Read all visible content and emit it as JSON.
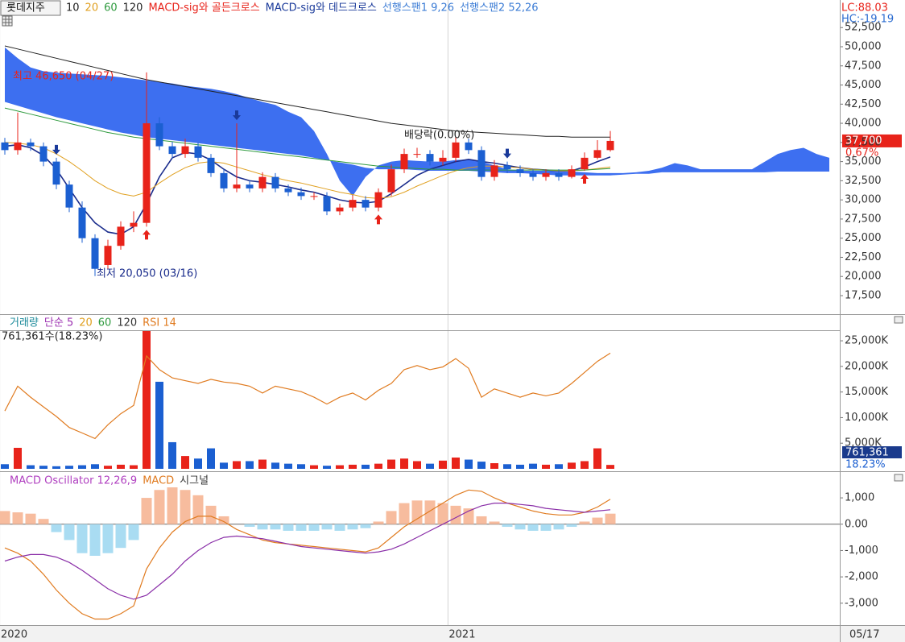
{
  "chart_data": [
    {
      "type": "candlestick",
      "title": "롯데지주",
      "open": [
        37500,
        36500,
        37500,
        37000,
        35000,
        32000,
        29000,
        25000,
        21500,
        24000,
        26500,
        27000,
        40000,
        37000,
        36000,
        37000,
        35500,
        33500,
        31500,
        32000,
        31500,
        33000,
        31500,
        31000,
        30500,
        30500,
        28500,
        29000,
        30000,
        29000,
        31000,
        34000,
        36000,
        36000,
        35000,
        35500,
        37500,
        36500,
        33000,
        34500,
        34000,
        33500,
        33000,
        33500,
        33000,
        34000,
        35500,
        36500
      ],
      "high": [
        38100,
        41400,
        38000,
        37500,
        35500,
        32500,
        29800,
        25500,
        24800,
        27200,
        28500,
        46650,
        40800,
        37600,
        38000,
        37500,
        36000,
        34000,
        40000,
        32500,
        33600,
        33500,
        32000,
        31600,
        31000,
        31000,
        29500,
        30600,
        30500,
        31500,
        34600,
        36700,
        36800,
        36500,
        36500,
        38200,
        38000,
        37000,
        35200,
        35000,
        34500,
        34000,
        34000,
        34000,
        34500,
        36200,
        37800,
        39000
      ],
      "low": [
        35900,
        35900,
        36400,
        34400,
        31400,
        28400,
        24400,
        20050,
        21000,
        23500,
        25800,
        26500,
        36500,
        35400,
        35500,
        35000,
        33000,
        31000,
        31000,
        31000,
        31000,
        31000,
        30500,
        30000,
        30000,
        28000,
        28000,
        28500,
        28500,
        28500,
        30500,
        33500,
        35500,
        34500,
        34500,
        35000,
        36000,
        32500,
        32500,
        33500,
        33000,
        32500,
        32500,
        32500,
        32800,
        33800,
        35300,
        36300
      ],
      "close": [
        36500,
        37500,
        37000,
        35000,
        32000,
        29000,
        25000,
        21000,
        24000,
        26500,
        27000,
        40000,
        37000,
        36000,
        37000,
        35500,
        33500,
        31500,
        32000,
        31500,
        33000,
        31500,
        31000,
        30500,
        30500,
        28500,
        29000,
        30000,
        29000,
        31000,
        34000,
        36000,
        36000,
        35000,
        35500,
        37500,
        36500,
        33000,
        34500,
        34000,
        33500,
        33000,
        33500,
        33000,
        34000,
        35500,
        36500,
        37700
      ],
      "up_color": "#e8231a",
      "down_color": "#1b5fd1",
      "lines": [
        {
          "name": "10",
          "color": "#1a2c8c",
          "values": [
            37000,
            37200,
            36800,
            35800,
            34000,
            31500,
            29000,
            27000,
            25800,
            25500,
            26500,
            29500,
            33000,
            35500,
            36200,
            36000,
            35200,
            34000,
            33000,
            32500,
            32300,
            32000,
            31700,
            31300,
            31000,
            30500,
            30000,
            29700,
            29600,
            29800,
            30800,
            32000,
            33200,
            34000,
            34500,
            35000,
            35300,
            35000,
            34800,
            34500,
            34200,
            34000,
            33900,
            33800,
            33800,
            34300,
            35000,
            35600
          ]
        },
        {
          "name": "20",
          "color": "#e0a020",
          "values": [
            37500,
            37400,
            37200,
            36800,
            36000,
            35000,
            33800,
            32500,
            31500,
            30800,
            30500,
            31000,
            32200,
            33300,
            34200,
            34800,
            35000,
            34800,
            34300,
            33800,
            33300,
            32900,
            32500,
            32200,
            31800,
            31400,
            31000,
            30700,
            30300,
            30200,
            30400,
            31000,
            31800,
            32500,
            33200,
            33800,
            34200,
            34400,
            34400,
            34300,
            34200,
            34000,
            33900,
            33800,
            33800,
            33900,
            34100,
            34300
          ]
        },
        {
          "name": "60",
          "color": "#2e9a3e",
          "values": [
            42000,
            41600,
            41200,
            40800,
            40400,
            40000,
            39600,
            39200,
            38800,
            38500,
            38200,
            38000,
            37800,
            37600,
            37400,
            37200,
            37000,
            36800,
            36600,
            36400,
            36200,
            36000,
            35800,
            35600,
            35400,
            35200,
            35000,
            34800,
            34600,
            34400,
            34300,
            34200,
            34100,
            34000,
            34000,
            33900,
            33900,
            33900,
            33900,
            33900,
            33900,
            33900,
            33900,
            33900,
            33900,
            33900,
            34000,
            34100
          ]
        },
        {
          "name": "120",
          "color": "#222222",
          "values": [
            50100,
            49700,
            49300,
            48900,
            48500,
            48100,
            47700,
            47300,
            46900,
            46500,
            46100,
            45700,
            45400,
            45100,
            44800,
            44500,
            44200,
            43900,
            43600,
            43300,
            43000,
            42700,
            42400,
            42100,
            41800,
            41500,
            41200,
            40900,
            40600,
            40300,
            40000,
            39800,
            39600,
            39400,
            39200,
            39000,
            38900,
            38800,
            38700,
            38600,
            38500,
            38400,
            38300,
            38300,
            38200,
            38200,
            38200,
            38200
          ]
        }
      ],
      "signals": [
        {
          "name": "MACD-sig와 골든크로스",
          "color": "#e8231a",
          "direction": "up",
          "at": [
            11,
            29,
            45
          ]
        },
        {
          "name": "MACD-sig와 데드크로스",
          "color": "#1a3a9a",
          "direction": "down",
          "at": [
            4,
            18,
            39
          ]
        }
      ],
      "cloud": {
        "color": "#3d6ff0",
        "spans": [
          {
            "name": "선행스팬1 9,26",
            "color": "#3a7bd5",
            "values": [
              49900,
              48500,
              47300,
              46800,
              46600,
              46500,
              46400,
              46300,
              46200,
              46000,
              45800,
              45600,
              45400,
              45200,
              44900,
              44700,
              44500,
              44200,
              43800,
              43300,
              42800,
              42400,
              41500,
              40800,
              39000,
              36000,
              32500,
              30500,
              33000,
              34500,
              35000,
              35200,
              35100,
              35000,
              35000,
              35200,
              35300,
              35000,
              34500,
              34000,
              33800,
              33800,
              33800,
              33800,
              33700,
              33600,
              33500,
              33500,
              33500,
              33600,
              33800,
              34200,
              34800,
              34500,
              34000,
              34000,
              34000,
              34000,
              34000,
              35000,
              36000,
              36500,
              36800,
              36000,
              35500
            ]
          },
          {
            "name": "선행스팬2 52,26",
            "color": "#3a7bd5",
            "values": [
              42800,
              42300,
              41800,
              41300,
              40800,
              40400,
              40000,
              39600,
              39200,
              38800,
              38500,
              38200,
              38000,
              37800,
              37600,
              37400,
              37200,
              37000,
              36800,
              36600,
              36400,
              36200,
              36000,
              35800,
              35500,
              35200,
              34900,
              34600,
              34200,
              34000,
              34000,
              34000,
              33900,
              33800,
              33800,
              33800,
              33800,
              33700,
              33600,
              33500,
              33500,
              33400,
              33300,
              33200,
              33200,
              33200,
              33200,
              33200,
              33300,
              33400,
              33400,
              33600,
              33600,
              33600,
              33600,
              33600,
              33600,
              33600,
              33600,
              33600,
              33700,
              33700,
              33700,
              33700,
              33700
            ]
          }
        ]
      },
      "annotations": [
        {
          "text": "최고 46,650 (04/27)",
          "color": "#e8231a"
        },
        {
          "text": "최저 20,050 (03/16)",
          "color": "#1a2c8c"
        },
        {
          "text": "배당락(0.00%)",
          "color": "#222222"
        }
      ],
      "current": {
        "value": 37700,
        "label": "37,700"
      },
      "change": "0.67%",
      "lc": "LC:88.03",
      "hc": "HC:-19.19",
      "ylim": [
        15080,
        56100
      ],
      "yticks": [
        {
          "value": 17500,
          "label": "17,500"
        },
        {
          "value": 20000,
          "label": "20,000"
        },
        {
          "value": 22500,
          "label": "22,500"
        },
        {
          "value": 25000,
          "label": "25,000"
        },
        {
          "value": 27500,
          "label": "27,500"
        },
        {
          "value": 30000,
          "label": "30,000"
        },
        {
          "value": 32500,
          "label": "32,500"
        },
        {
          "value": 35000,
          "label": "35,000"
        },
        {
          "value": 37500,
          "label": "37,500"
        },
        {
          "value": 40000,
          "label": "40,000"
        },
        {
          "value": 42500,
          "label": "42,500"
        },
        {
          "value": 45000,
          "label": "45,000"
        },
        {
          "value": 47500,
          "label": "47,500"
        },
        {
          "value": 50000,
          "label": "50,000"
        },
        {
          "value": 52500,
          "label": "52,500"
        }
      ]
    },
    {
      "type": "bar",
      "series": [
        {
          "name": "거래량",
          "kind": "bar",
          "color": "#1b8a9a",
          "values": [
            900,
            4100,
            700,
            600,
            500,
            600,
            700,
            900,
            600,
            800,
            700,
            26900,
            17000,
            5200,
            2500,
            2000,
            4000,
            1200,
            1500,
            1500,
            1800,
            1200,
            1000,
            900,
            700,
            600,
            700,
            800,
            800,
            1000,
            1800,
            2000,
            1500,
            1000,
            1600,
            2200,
            1800,
            1400,
            1100,
            900,
            800,
            1000,
            800,
            900,
            1200,
            1500,
            4000,
            761.361
          ]
        },
        {
          "name": "RSI 14",
          "kind": "line",
          "axis": "y2",
          "color": "#e07b20",
          "values": [
            42,
            60,
            52,
            45,
            38,
            30,
            26,
            22,
            32,
            40,
            46,
            82,
            72,
            66,
            64,
            62,
            65,
            63,
            62,
            60,
            55,
            60,
            58,
            56,
            52,
            47,
            52,
            55,
            50,
            57,
            62,
            72,
            75,
            72,
            74,
            80,
            73,
            52,
            58,
            55,
            52,
            55,
            53,
            55,
            62,
            70,
            78,
            84
          ]
        }
      ],
      "ma_labels": [
        {
          "name": "단순 5",
          "color": "#9b2fb0"
        },
        {
          "name": "20",
          "color": "#e0a020"
        },
        {
          "name": "60",
          "color": "#2e9a3e"
        },
        {
          "name": "120",
          "color": "#333333"
        }
      ],
      "info": "761,361수(18.23%)",
      "current": {
        "value": 761.361,
        "label": "761,361"
      },
      "share": "18.23%",
      "ylim": [
        0,
        26900
      ],
      "yticks": [
        {
          "value": 5000,
          "label": "5,000K"
        },
        {
          "value": 10000,
          "label": "10,000K"
        },
        {
          "value": 15000,
          "label": "15,000K"
        },
        {
          "value": 20000,
          "label": "20,000K"
        },
        {
          "value": 25000,
          "label": "25,000K"
        }
      ],
      "y2lim": [
        0,
        100
      ]
    },
    {
      "type": "bar",
      "series": [
        {
          "name": "MACD Oscillator 12,26,9",
          "kind": "bar",
          "color": "#b040c0",
          "pos_color": "#f7bc9e",
          "neg_color": "#a9dcf2",
          "values": [
            500,
            450,
            400,
            200,
            -300,
            -600,
            -1100,
            -1200,
            -1100,
            -900,
            -600,
            1000,
            1300,
            1400,
            1300,
            1100,
            700,
            300,
            0,
            -100,
            -200,
            -200,
            -250,
            -250,
            -250,
            -200,
            -250,
            -200,
            -150,
            100,
            500,
            800,
            900,
            900,
            800,
            700,
            600,
            300,
            100,
            -100,
            -200,
            -250,
            -250,
            -200,
            -100,
            100,
            250,
            400
          ]
        },
        {
          "name": "MACD",
          "kind": "line",
          "color": "#e07b20",
          "values": [
            -900,
            -1100,
            -1400,
            -1900,
            -2500,
            -3000,
            -3400,
            -3600,
            -3600,
            -3400,
            -3100,
            -1700,
            -900,
            -300,
            100,
            300,
            300,
            100,
            -200,
            -400,
            -600,
            -700,
            -750,
            -800,
            -850,
            -900,
            -950,
            -1000,
            -1050,
            -900,
            -500,
            -100,
            200,
            500,
            800,
            1100,
            1300,
            1250,
            1000,
            800,
            650,
            500,
            400,
            350,
            350,
            450,
            650,
            950
          ]
        },
        {
          "name": "시그널",
          "kind": "line",
          "color": "#8a2fa8",
          "values": [
            -1400,
            -1250,
            -1150,
            -1150,
            -1250,
            -1450,
            -1750,
            -2100,
            -2450,
            -2700,
            -2850,
            -2700,
            -2300,
            -1900,
            -1400,
            -1000,
            -700,
            -500,
            -450,
            -500,
            -550,
            -650,
            -750,
            -850,
            -900,
            -950,
            -1000,
            -1050,
            -1100,
            -1050,
            -950,
            -750,
            -500,
            -250,
            0,
            250,
            500,
            700,
            800,
            800,
            750,
            700,
            600,
            550,
            500,
            450,
            500,
            550
          ]
        }
      ],
      "ylim": [
        -3800,
        1950
      ],
      "yticks": [
        {
          "value": 1000,
          "label": "1,000"
        },
        {
          "value": 0,
          "label": "0.00"
        },
        {
          "value": -1000,
          "label": "-1,000"
        },
        {
          "value": -2000,
          "label": "-2,000"
        },
        {
          "value": -3000,
          "label": "-3,000"
        }
      ],
      "xticks": [
        {
          "value": -0.4,
          "label": "2020"
        },
        {
          "value": 34.4,
          "label": "2021"
        }
      ],
      "date_label": "05/17"
    }
  ]
}
